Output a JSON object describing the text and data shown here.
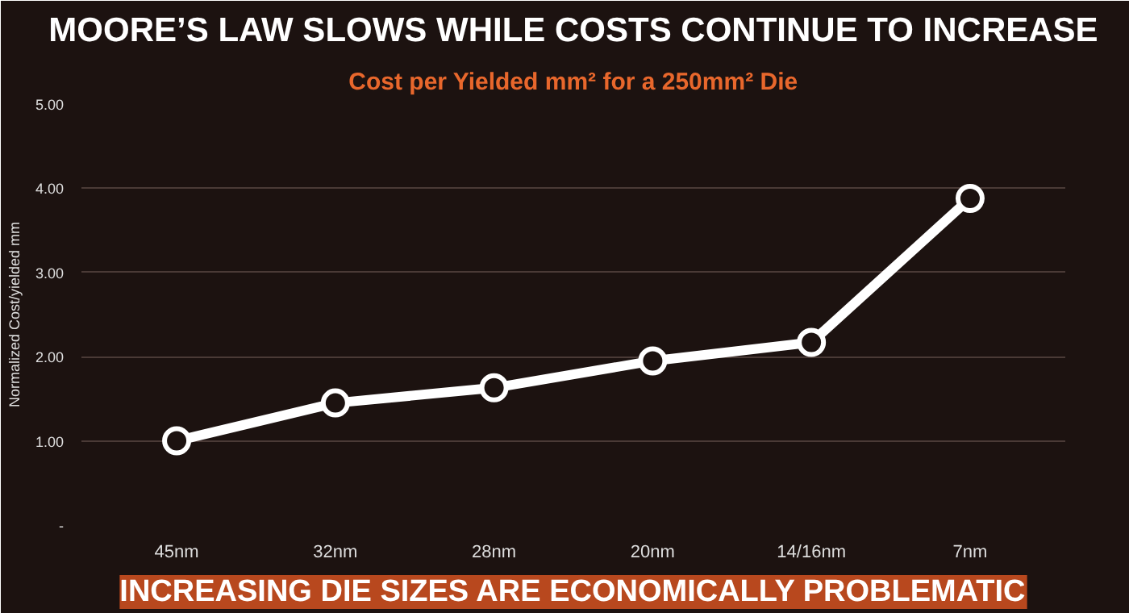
{
  "chart_data": {
    "type": "line",
    "title": "MOORE’S LAW SLOWS WHILE COSTS CONTINUE TO INCREASE",
    "subtitle": "Cost per Yielded mm² for a 250mm² Die",
    "ylabel": "Normalized Cost/yielded mm",
    "categories": [
      "45nm",
      "32nm",
      "28nm",
      "20nm",
      "14/16nm",
      "7nm"
    ],
    "series": [
      {
        "color": "#ffffff",
        "values": [
          1.0,
          1.45,
          1.63,
          1.95,
          2.17,
          3.88
        ]
      }
    ],
    "ylim": [
      0,
      5
    ],
    "yticks": [
      {
        "value": 0,
        "label": "-"
      },
      {
        "value": 1,
        "label": "1.00"
      },
      {
        "value": 2,
        "label": "2.00"
      },
      {
        "value": 3,
        "label": "3.00"
      },
      {
        "value": 4,
        "label": "4.00"
      },
      {
        "value": 5,
        "label": "5.00"
      }
    ],
    "grid": "y",
    "marker": "circle",
    "line_style": "solid",
    "annotations": [
      "INCREASING DIE SIZES ARE ECONOMICALLY PROBLEMATIC"
    ]
  }
}
